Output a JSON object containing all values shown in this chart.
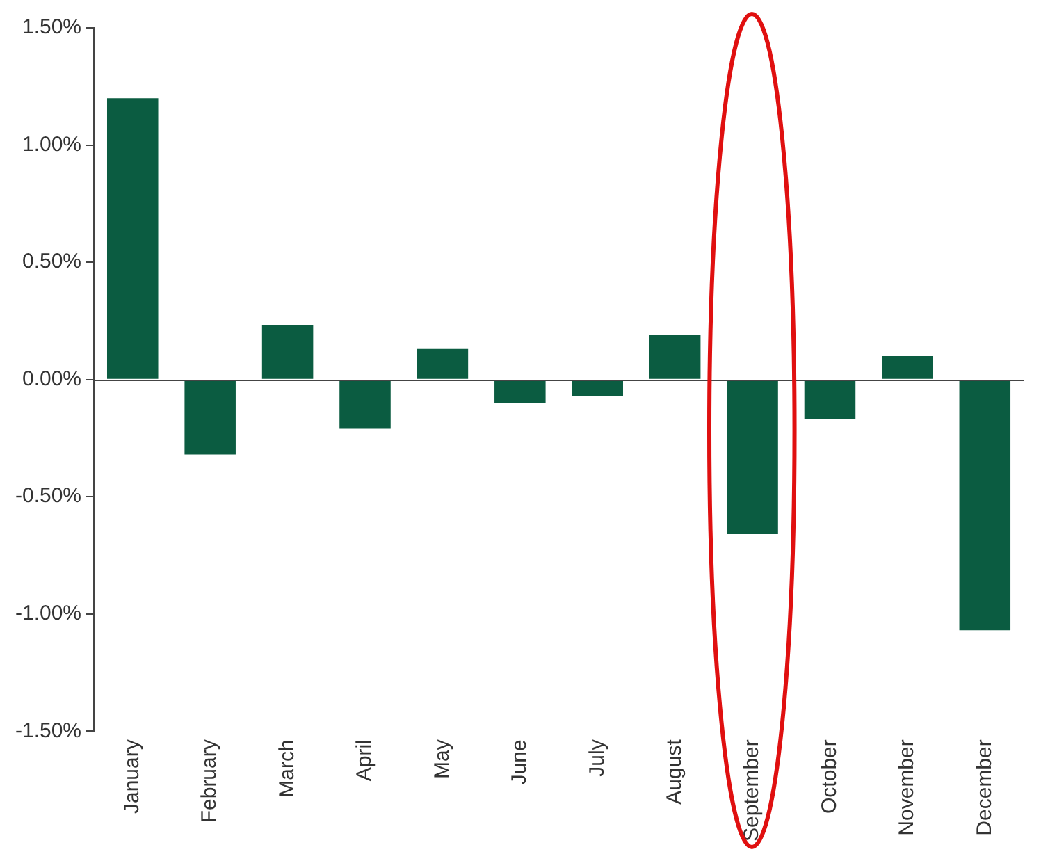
{
  "chart_data": {
    "type": "bar",
    "categories": [
      "January",
      "February",
      "March",
      "April",
      "May",
      "June",
      "July",
      "August",
      "September",
      "October",
      "November",
      "December"
    ],
    "values": [
      1.2,
      -0.32,
      0.23,
      -0.21,
      0.13,
      -0.1,
      -0.07,
      0.19,
      -0.66,
      -0.17,
      0.1,
      -1.07
    ],
    "color": "#0b5c41",
    "ylim": [
      -1.5,
      1.5
    ],
    "yticks": [
      {
        "value": -1.5,
        "label": "-1.50%"
      },
      {
        "value": -1,
        "label": "-1.00%"
      },
      {
        "value": -0.5,
        "label": "-0.50%"
      },
      {
        "value": 0,
        "label": "0.00%"
      },
      {
        "value": 0.5,
        "label": "0.50%"
      },
      {
        "value": 1,
        "label": "1.00%"
      },
      {
        "value": 1.5,
        "label": "1.50%"
      }
    ],
    "ref_lines": [
      {
        "axis": "y",
        "value": 0,
        "color": "#444444"
      }
    ],
    "grid": false,
    "legend": false
  }
}
